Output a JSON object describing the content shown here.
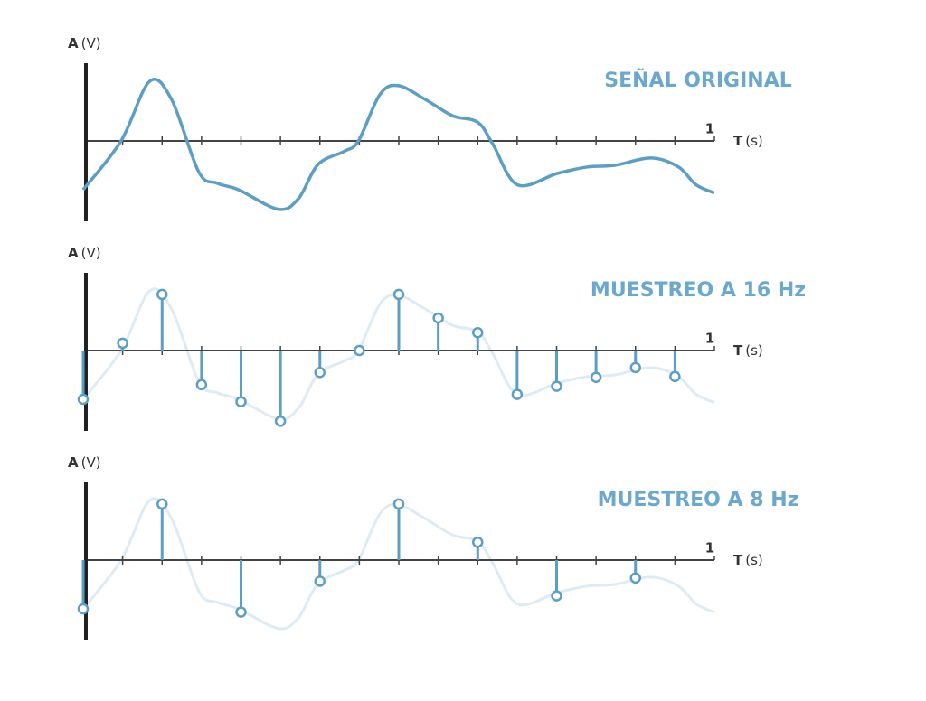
{
  "chart_data": [
    {
      "type": "line",
      "title": "SEÑAL ORIGINAL",
      "y_label": "A",
      "y_unit": "(V)",
      "x_label": "T",
      "x_unit": "(s)",
      "x": [
        0,
        0.06,
        0.105,
        0.14,
        0.183,
        0.212,
        0.246,
        0.309,
        0.341,
        0.372,
        0.413,
        0.436,
        0.47,
        0.499,
        0.542,
        0.585,
        0.625,
        0.649,
        0.688,
        0.751,
        0.799,
        0.842,
        0.9,
        0.943,
        0.971,
        1
      ],
      "values": [
        -0.6,
        0,
        0.73,
        0.51,
        -0.38,
        -0.52,
        -0.6,
        -0.84,
        -0.71,
        -0.29,
        -0.13,
        0,
        0.57,
        0.68,
        0.51,
        0.31,
        0.23,
        -0.04,
        -0.54,
        -0.4,
        -0.32,
        -0.3,
        -0.21,
        -0.32,
        -0.54,
        -0.64
      ],
      "color": "#5b9fc6",
      "xlim": [
        0,
        1
      ],
      "ylim": [
        -1,
        1
      ],
      "xticks": [
        1
      ],
      "minor_xticks": [
        0.0625,
        0.125,
        0.1875,
        0.25,
        0.3125,
        0.375,
        0.4375,
        0.5,
        0.5625,
        0.625,
        0.6875,
        0.75,
        0.8125,
        0.875,
        0.9375
      ]
    },
    {
      "type": "stem",
      "title": "MUESTREO A 16 Hz",
      "y_label": "A",
      "y_unit": "(V)",
      "x_label": "T",
      "x_unit": "(s)",
      "x": [
        0,
        0.0625,
        0.125,
        0.1875,
        0.25,
        0.3125,
        0.375,
        0.4375,
        0.5,
        0.5625,
        0.625,
        0.6875,
        0.75,
        0.8125,
        0.875,
        0.9375
      ],
      "values": [
        -0.6,
        0.09,
        0.69,
        -0.42,
        -0.63,
        -0.87,
        -0.27,
        0,
        0.69,
        0.4,
        0.22,
        -0.54,
        -0.44,
        -0.33,
        -0.21,
        -0.32
      ],
      "color": "#5b9fc6",
      "xlim": [
        0,
        1
      ],
      "ylim": [
        -1,
        1
      ],
      "xticks": [
        1
      ],
      "minor_xticks": [
        0.0625,
        0.125,
        0.1875,
        0.25,
        0.3125,
        0.375,
        0.4375,
        0.5,
        0.5625,
        0.625,
        0.6875,
        0.75,
        0.8125,
        0.875,
        0.9375
      ]
    },
    {
      "type": "stem",
      "title": "MUESTREO A 8 Hz",
      "y_label": "A",
      "y_unit": "(V)",
      "x_label": "T",
      "x_unit": "(s)",
      "x": [
        0,
        0.125,
        0.25,
        0.375,
        0.5,
        0.625,
        0.75,
        0.875
      ],
      "values": [
        -0.6,
        0.69,
        -0.64,
        -0.26,
        0.69,
        0.22,
        -0.44,
        -0.22
      ],
      "color": "#5b9fc6",
      "xlim": [
        0,
        1
      ],
      "ylim": [
        -1,
        1
      ],
      "xticks": [
        1
      ],
      "minor_xticks": [
        0.0625,
        0.125,
        0.1875,
        0.25,
        0.3125,
        0.375,
        0.4375,
        0.5,
        0.5625,
        0.625,
        0.6875,
        0.75,
        0.8125,
        0.875,
        0.9375
      ]
    }
  ]
}
